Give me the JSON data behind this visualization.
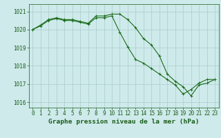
{
  "title": "Graphe pression niveau de la mer (hPa)",
  "background_color": "#ceeaea",
  "grid_color": "#aacccc",
  "line_color": "#1a6b1a",
  "marker_color": "#1a6b1a",
  "xlim": [
    -0.5,
    23.5
  ],
  "ylim": [
    1015.7,
    1021.4
  ],
  "yticks": [
    1016,
    1017,
    1018,
    1019,
    1020,
    1021
  ],
  "xticks": [
    0,
    1,
    2,
    3,
    4,
    5,
    6,
    7,
    8,
    9,
    10,
    11,
    12,
    13,
    14,
    15,
    16,
    17,
    18,
    19,
    20,
    21,
    22,
    23
  ],
  "series1": {
    "x": [
      0,
      1,
      2,
      3,
      4,
      5,
      6,
      7,
      8,
      9,
      10,
      11,
      12,
      13,
      14,
      15,
      16,
      17,
      18,
      19,
      20,
      21,
      22,
      23
    ],
    "y": [
      1020.0,
      1020.25,
      1020.55,
      1020.65,
      1020.55,
      1020.55,
      1020.45,
      1020.35,
      1020.75,
      1020.75,
      1020.85,
      1020.85,
      1020.55,
      1020.1,
      1019.5,
      1019.15,
      1018.55,
      1017.55,
      1017.15,
      1016.85,
      1016.35,
      1016.95,
      1017.05,
      1017.25
    ]
  },
  "series2": {
    "x": [
      0,
      1,
      2,
      3,
      4,
      5,
      6,
      7,
      8,
      9,
      10,
      11,
      12,
      13,
      14,
      15,
      16,
      17,
      18,
      19,
      20,
      21,
      22,
      23
    ],
    "y": [
      1020.0,
      1020.2,
      1020.5,
      1020.6,
      1020.5,
      1020.5,
      1020.4,
      1020.3,
      1020.65,
      1020.65,
      1020.75,
      1019.85,
      1019.05,
      1018.35,
      1018.15,
      1017.85,
      1017.55,
      1017.25,
      1016.95,
      1016.45,
      1016.7,
      1017.05,
      1017.25,
      1017.25
    ]
  },
  "tick_fontsize": 5.5,
  "title_fontsize": 6.8,
  "title_color": "#1a5c1a",
  "tick_color": "#1a5c1a",
  "axis_color": "#1a5c1a"
}
